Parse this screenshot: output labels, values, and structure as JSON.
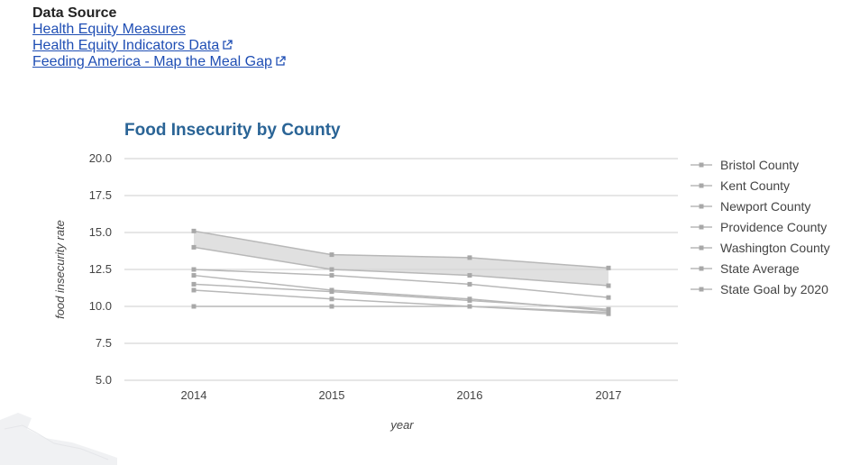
{
  "data_source": {
    "heading": "Data Source",
    "links": [
      {
        "label": "Health Equity Measures",
        "external": false
      },
      {
        "label": "Health Equity Indicators Data",
        "external": true
      },
      {
        "label": "Feeding America - Map the Meal Gap",
        "external": true
      }
    ]
  },
  "colors": {
    "link": "#1f4eb4",
    "title": "#2a6496",
    "series": "#b8b8b8",
    "grid": "#cccccc",
    "band": "#d6d6d6"
  },
  "chart_data": {
    "type": "line",
    "title": "Food Insecurity by County",
    "xlabel": "year",
    "ylabel": "food insecurity rate",
    "x": [
      "2014",
      "2015",
      "2016",
      "2017"
    ],
    "ylim": [
      5.0,
      20.0
    ],
    "yticks": [
      "5.0",
      "7.5",
      "10.0",
      "12.5",
      "15.0",
      "17.5",
      "20.0"
    ],
    "grid": true,
    "legend_position": "right",
    "series": [
      {
        "name": "Bristol County",
        "values": [
          11.1,
          10.5,
          10.0,
          9.5
        ]
      },
      {
        "name": "Kent County",
        "values": [
          12.1,
          11.1,
          10.5,
          9.7
        ]
      },
      {
        "name": "Newport County",
        "values": [
          11.5,
          11.0,
          10.4,
          9.8
        ]
      },
      {
        "name": "Providence County",
        "values": [
          15.1,
          13.5,
          13.3,
          12.6
        ]
      },
      {
        "name": "Washington County",
        "values": [
          10.0,
          10.0,
          10.0,
          9.6
        ]
      },
      {
        "name": "State Average",
        "values": [
          14.0,
          12.5,
          12.1,
          11.4
        ]
      },
      {
        "name": "State Goal by 2020",
        "values": [
          12.5,
          12.1,
          11.5,
          10.6
        ]
      }
    ]
  }
}
